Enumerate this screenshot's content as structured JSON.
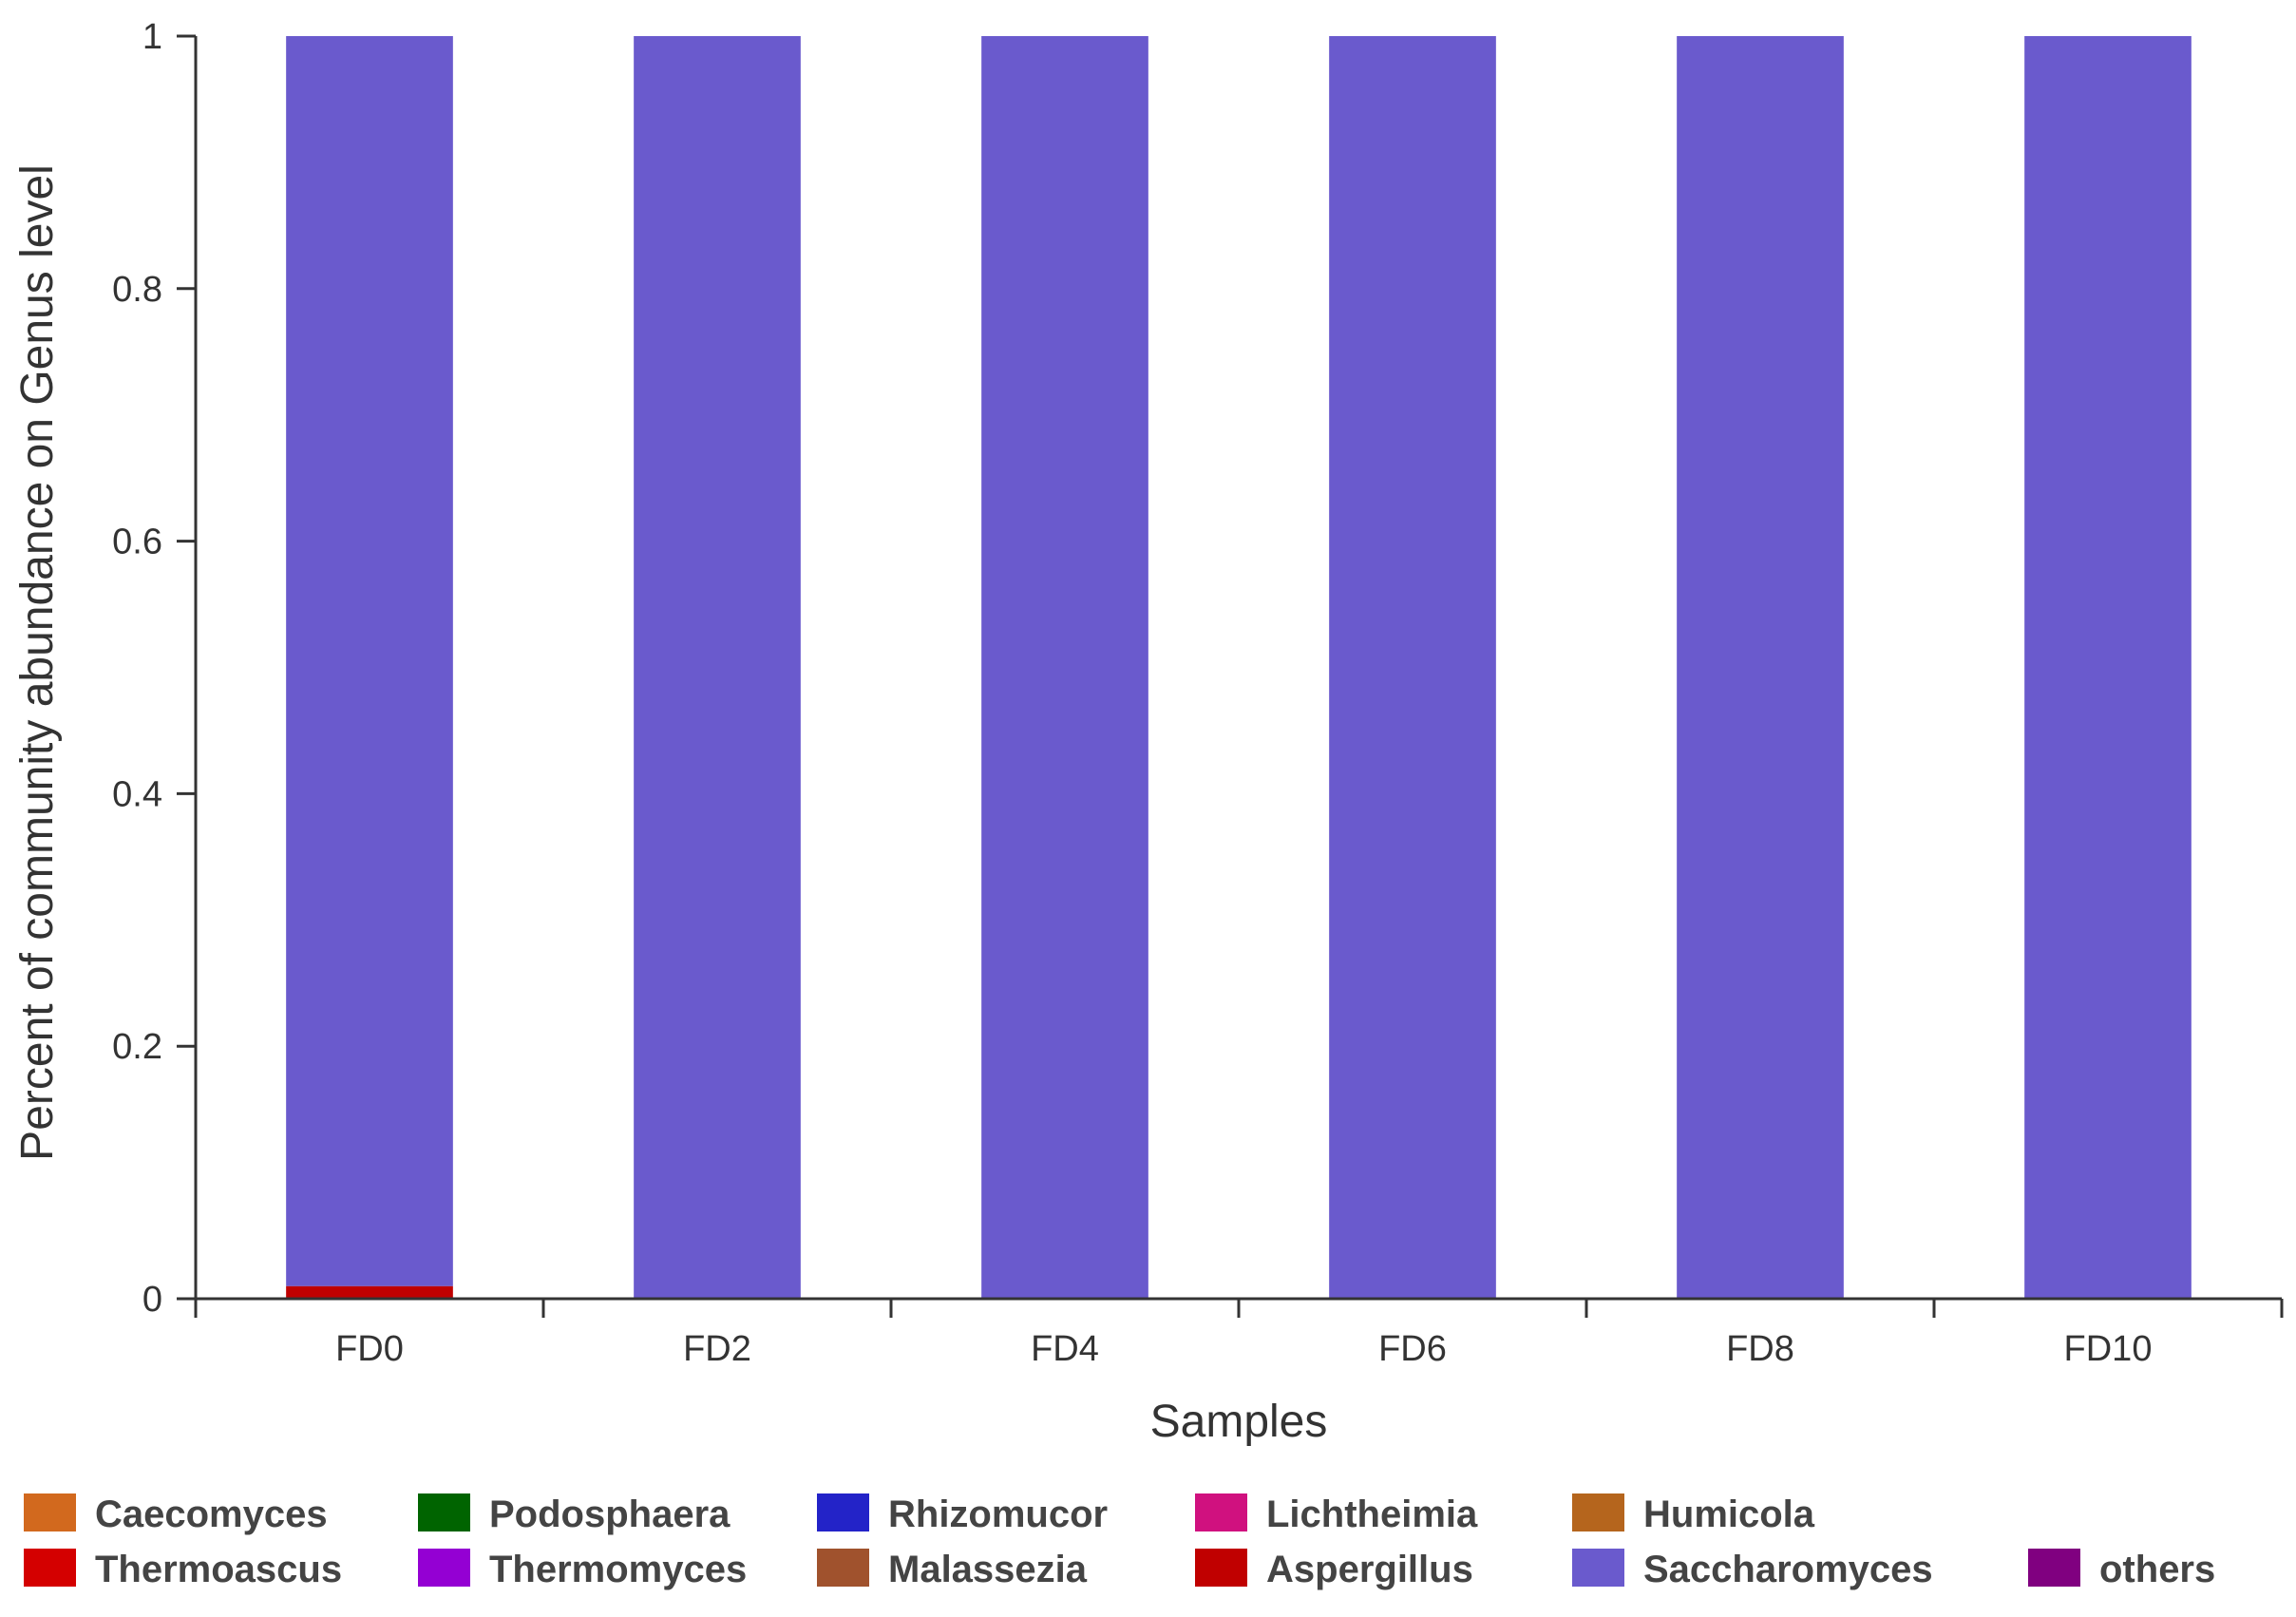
{
  "chart_data": {
    "type": "bar",
    "stacked": true,
    "xlabel": "Samples",
    "ylabel": "Percent of community abundance on Genus level",
    "ylim": [
      0,
      1
    ],
    "yticks": [
      "0",
      "0.2",
      "0.4",
      "0.6",
      "0.8",
      "1"
    ],
    "categories": [
      "FD0",
      "FD2",
      "FD4",
      "FD6",
      "FD8",
      "FD10"
    ],
    "series": [
      {
        "name": "Caecomyces",
        "color": "#d2691e",
        "values": [
          0,
          0,
          0,
          0,
          0,
          0
        ]
      },
      {
        "name": "Podosphaera",
        "color": "#006400",
        "values": [
          0,
          0,
          0,
          0,
          0,
          0
        ]
      },
      {
        "name": "Rhizomucor",
        "color": "#2323c8",
        "values": [
          0,
          0,
          0,
          0,
          0,
          0
        ]
      },
      {
        "name": "Lichtheimia",
        "color": "#d0117f",
        "values": [
          0,
          0,
          0,
          0,
          0,
          0
        ]
      },
      {
        "name": "Humicola",
        "color": "#b5651d",
        "values": [
          0,
          0,
          0,
          0,
          0,
          0
        ]
      },
      {
        "name": "Thermoascus",
        "color": "#d40000",
        "values": [
          0,
          0,
          0,
          0,
          0,
          0
        ]
      },
      {
        "name": "Thermomyces",
        "color": "#9400d3",
        "values": [
          0,
          0,
          0,
          0,
          0,
          0
        ]
      },
      {
        "name": "Malassezia",
        "color": "#a0522d",
        "values": [
          0,
          0,
          0,
          0,
          0,
          0
        ]
      },
      {
        "name": "Aspergillus",
        "color": "#c00000",
        "values": [
          0.01,
          0,
          0,
          0,
          0,
          0
        ]
      },
      {
        "name": "Saccharomyces",
        "color": "#6a5acd",
        "values": [
          0.99,
          1,
          1,
          1,
          1,
          1
        ]
      },
      {
        "name": "others",
        "color": "#800080",
        "values": [
          0,
          0,
          0,
          0,
          0,
          0
        ]
      }
    ],
    "legend_position": "bottom",
    "grid": false
  }
}
